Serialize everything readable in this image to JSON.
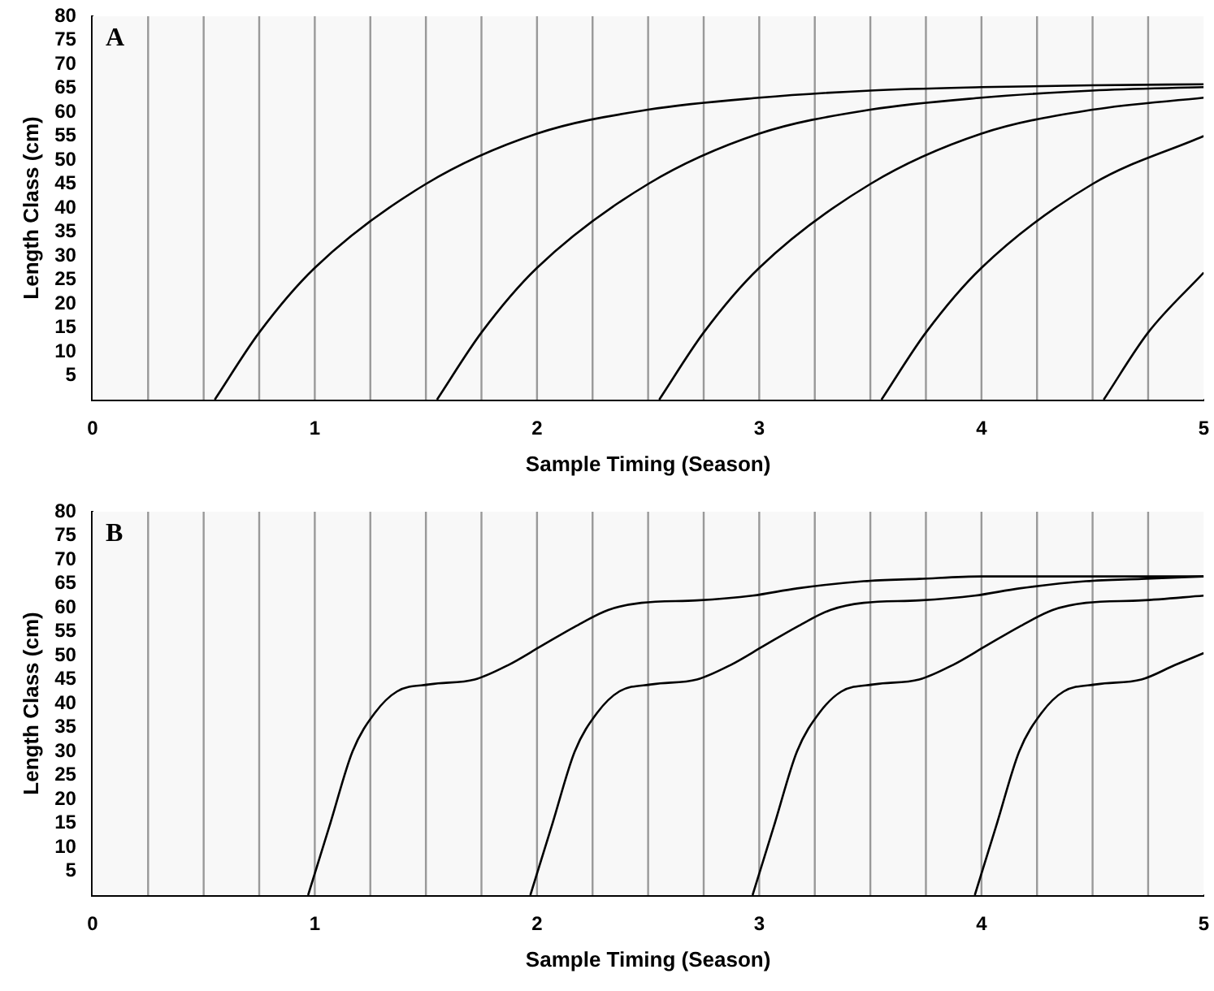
{
  "chart_data": [
    {
      "type": "line",
      "xlabel": "Sample Timing (Season)",
      "ylabel": "Length Class (cm)",
      "annotations": [
        "A"
      ],
      "xlim": [
        0,
        5
      ],
      "xticks": [
        0,
        1,
        2,
        3,
        4,
        5
      ],
      "ylim": [
        0,
        80
      ],
      "yticks": [
        5,
        10,
        15,
        20,
        25,
        30,
        35,
        40,
        45,
        50,
        55,
        60,
        65,
        70,
        75,
        80
      ],
      "grid": false,
      "legend": false,
      "marker": "none",
      "line_style": "solid",
      "ref_lines": [
        {
          "axis": "x",
          "value": 0.25,
          "color": "#999999"
        },
        {
          "axis": "x",
          "value": 0.5,
          "color": "#999999"
        },
        {
          "axis": "x",
          "value": 0.75,
          "color": "#999999"
        },
        {
          "axis": "x",
          "value": 1,
          "color": "#999999"
        },
        {
          "axis": "x",
          "value": 1.25,
          "color": "#999999"
        },
        {
          "axis": "x",
          "value": 1.5,
          "color": "#999999"
        },
        {
          "axis": "x",
          "value": 1.75,
          "color": "#999999"
        },
        {
          "axis": "x",
          "value": 2,
          "color": "#999999"
        },
        {
          "axis": "x",
          "value": 2.25,
          "color": "#999999"
        },
        {
          "axis": "x",
          "value": 2.5,
          "color": "#999999"
        },
        {
          "axis": "x",
          "value": 2.75,
          "color": "#999999"
        },
        {
          "axis": "x",
          "value": 3,
          "color": "#999999"
        },
        {
          "axis": "x",
          "value": 3.25,
          "color": "#999999"
        },
        {
          "axis": "x",
          "value": 3.5,
          "color": "#999999"
        },
        {
          "axis": "x",
          "value": 3.75,
          "color": "#999999"
        },
        {
          "axis": "x",
          "value": 4,
          "color": "#999999"
        },
        {
          "axis": "x",
          "value": 4.25,
          "color": "#999999"
        },
        {
          "axis": "x",
          "value": 4.5,
          "color": "#999999"
        },
        {
          "axis": "x",
          "value": 4.75,
          "color": "#999999"
        }
      ],
      "series": [
        {
          "color": "#000000",
          "x": [
            0.55,
            0.75,
            1,
            1.5,
            2,
            2.5,
            3,
            3.5,
            4,
            4.5,
            5
          ],
          "values": [
            0,
            14,
            27.5,
            45,
            55.5,
            60.5,
            63,
            64.5,
            65.2,
            65.6,
            65.8
          ]
        },
        {
          "color": "#000000",
          "x": [
            1.55,
            1.75,
            2,
            2.5,
            3,
            3.5,
            4,
            4.5,
            5
          ],
          "values": [
            0,
            14,
            27.5,
            45,
            55.5,
            60.5,
            63,
            64.5,
            65.2
          ]
        },
        {
          "color": "#000000",
          "x": [
            2.55,
            2.75,
            3,
            3.5,
            4,
            4.5,
            5
          ],
          "values": [
            0,
            14,
            27.5,
            45,
            55.5,
            60.5,
            63
          ]
        },
        {
          "color": "#000000",
          "x": [
            3.55,
            3.75,
            4,
            4.5,
            5
          ],
          "values": [
            0,
            14,
            27.5,
            45,
            55
          ]
        },
        {
          "color": "#000000",
          "x": [
            4.55,
            4.75,
            5
          ],
          "values": [
            0,
            14,
            26.5
          ]
        }
      ]
    },
    {
      "type": "line",
      "xlabel": "Sample Timing (Season)",
      "ylabel": "Length Class (cm)",
      "annotations": [
        "B"
      ],
      "xlim": [
        0,
        5
      ],
      "xticks": [
        0,
        1,
        2,
        3,
        4,
        5
      ],
      "ylim": [
        0,
        80
      ],
      "yticks": [
        5,
        10,
        15,
        20,
        25,
        30,
        35,
        40,
        45,
        50,
        55,
        60,
        65,
        70,
        75,
        80
      ],
      "grid": false,
      "legend": false,
      "marker": "none",
      "line_style": "solid",
      "ref_lines": [
        {
          "axis": "x",
          "value": 0.25,
          "color": "#999999"
        },
        {
          "axis": "x",
          "value": 0.5,
          "color": "#999999"
        },
        {
          "axis": "x",
          "value": 0.75,
          "color": "#999999"
        },
        {
          "axis": "x",
          "value": 1,
          "color": "#999999"
        },
        {
          "axis": "x",
          "value": 1.25,
          "color": "#999999"
        },
        {
          "axis": "x",
          "value": 1.5,
          "color": "#999999"
        },
        {
          "axis": "x",
          "value": 1.75,
          "color": "#999999"
        },
        {
          "axis": "x",
          "value": 2,
          "color": "#999999"
        },
        {
          "axis": "x",
          "value": 2.25,
          "color": "#999999"
        },
        {
          "axis": "x",
          "value": 2.5,
          "color": "#999999"
        },
        {
          "axis": "x",
          "value": 2.75,
          "color": "#999999"
        },
        {
          "axis": "x",
          "value": 3,
          "color": "#999999"
        },
        {
          "axis": "x",
          "value": 3.25,
          "color": "#999999"
        },
        {
          "axis": "x",
          "value": 3.5,
          "color": "#999999"
        },
        {
          "axis": "x",
          "value": 3.75,
          "color": "#999999"
        },
        {
          "axis": "x",
          "value": 4,
          "color": "#999999"
        },
        {
          "axis": "x",
          "value": 4.25,
          "color": "#999999"
        },
        {
          "axis": "x",
          "value": 4.5,
          "color": "#999999"
        },
        {
          "axis": "x",
          "value": 4.75,
          "color": "#999999"
        }
      ],
      "series": [
        {
          "color": "#000000",
          "x": [
            0.97,
            1.07,
            1.17,
            1.27,
            1.37,
            1.52,
            1.72,
            1.87,
            2.02,
            2.17,
            2.32,
            2.47,
            2.72,
            2.97,
            3.17,
            3.47,
            3.72,
            4,
            4.5,
            5
          ],
          "values": [
            0,
            15,
            30,
            38,
            42.5,
            44,
            45,
            48,
            52,
            56,
            59.5,
            61,
            61.5,
            62.5,
            64,
            65.5,
            66,
            66.5,
            66.5,
            66.5
          ]
        },
        {
          "color": "#000000",
          "x": [
            1.97,
            2.07,
            2.17,
            2.27,
            2.37,
            2.52,
            2.72,
            2.87,
            3.02,
            3.17,
            3.32,
            3.47,
            3.72,
            3.97,
            4.17,
            4.47,
            4.72,
            5
          ],
          "values": [
            0,
            15,
            30,
            38,
            42.5,
            44,
            45,
            48,
            52,
            56,
            59.5,
            61,
            61.5,
            62.5,
            64,
            65.5,
            66,
            66.5
          ]
        },
        {
          "color": "#000000",
          "x": [
            2.97,
            3.07,
            3.17,
            3.27,
            3.37,
            3.52,
            3.72,
            3.87,
            4.02,
            4.17,
            4.32,
            4.47,
            4.72,
            5
          ],
          "values": [
            0,
            15,
            30,
            38,
            42.5,
            44,
            45,
            48,
            52,
            56,
            59.5,
            61,
            61.5,
            62.5
          ]
        },
        {
          "color": "#000000",
          "x": [
            3.97,
            4.07,
            4.17,
            4.27,
            4.37,
            4.52,
            4.72,
            4.87,
            5
          ],
          "values": [
            0,
            15,
            30,
            38,
            42.5,
            44,
            45,
            48,
            50.5
          ]
        }
      ]
    }
  ]
}
